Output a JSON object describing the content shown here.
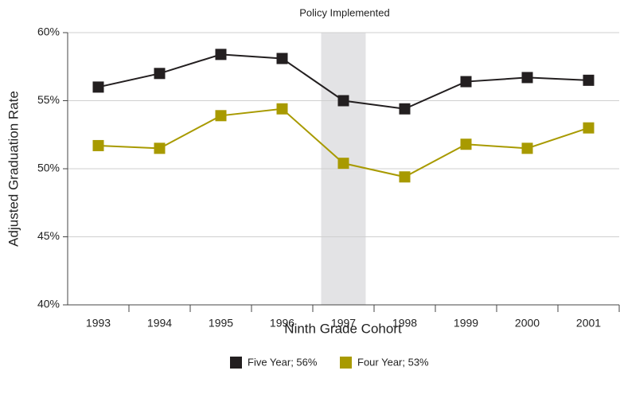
{
  "chart_data": {
    "type": "line",
    "annotation": "Policy Implemented",
    "highlight": "1997",
    "xlabel": "Ninth Grade Cohort",
    "ylabel": "Adjusted Graduation Rate",
    "categories": [
      "1993",
      "1994",
      "1995",
      "1996",
      "1997",
      "1998",
      "1999",
      "2000",
      "2001"
    ],
    "series": [
      {
        "name": "Five Year; 56%",
        "color": "#231f20",
        "values": [
          56.0,
          57.0,
          58.4,
          58.1,
          55.0,
          54.4,
          56.4,
          56.7,
          56.5
        ]
      },
      {
        "name": "Four Year; 53%",
        "color": "#a89a00",
        "values": [
          51.7,
          51.5,
          53.9,
          54.4,
          50.4,
          49.4,
          51.8,
          51.5,
          53.0
        ]
      }
    ],
    "ylim": [
      40,
      60
    ],
    "yticks": [
      {
        "value": 40,
        "label": "40%"
      },
      {
        "value": 45,
        "label": "45%"
      },
      {
        "value": 50,
        "label": "50%"
      },
      {
        "value": 55,
        "label": "55%"
      },
      {
        "value": 60,
        "label": "60%"
      }
    ],
    "grid": true
  }
}
